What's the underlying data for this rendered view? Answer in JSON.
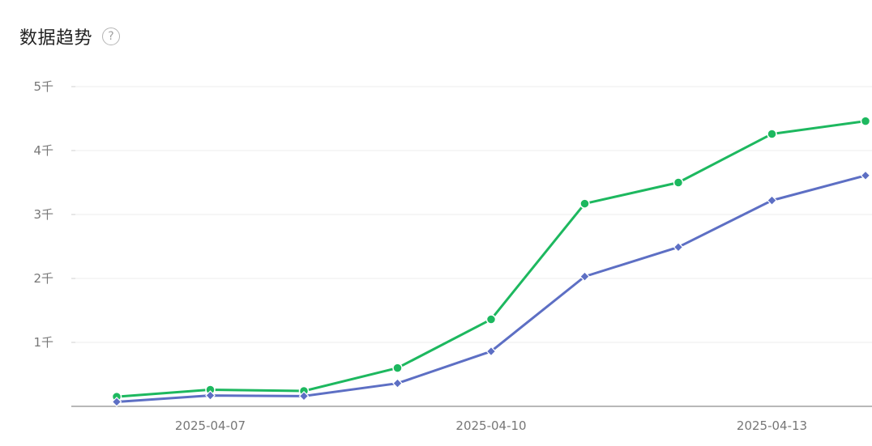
{
  "header": {
    "title": "数据趋势",
    "help_glyph": "?"
  },
  "colors": {
    "series_green": "#1db85f",
    "series_blue": "#5d6fc4",
    "grid": "#ececec",
    "axis": "#b8b8b8"
  },
  "chart_data": {
    "type": "line",
    "x": [
      "2025-04-06",
      "2025-04-07",
      "2025-04-08",
      "2025-04-09",
      "2025-04-10",
      "2025-04-11",
      "2025-04-12",
      "2025-04-13",
      "2025-04-14"
    ],
    "x_tick_labels": [
      "2025-04-07",
      "2025-04-10",
      "2025-04-13"
    ],
    "x_tick_values": [
      "2025-04-07",
      "2025-04-10",
      "2025-04-13"
    ],
    "y_tick_labels": [
      "1千",
      "2千",
      "3千",
      "4千",
      "5千"
    ],
    "y_tick_values": [
      1000,
      2000,
      3000,
      4000,
      5000
    ],
    "ylim": [
      0,
      5000
    ],
    "grid": true,
    "legend": "none",
    "series": [
      {
        "color": "#1db85f",
        "marker": "circle",
        "values": [
          150,
          260,
          240,
          600,
          1360,
          3170,
          3500,
          4260,
          4460
        ]
      },
      {
        "color": "#5d6fc4",
        "marker": "diamond",
        "values": [
          70,
          170,
          160,
          360,
          860,
          2030,
          2490,
          3220,
          3610
        ]
      }
    ]
  }
}
